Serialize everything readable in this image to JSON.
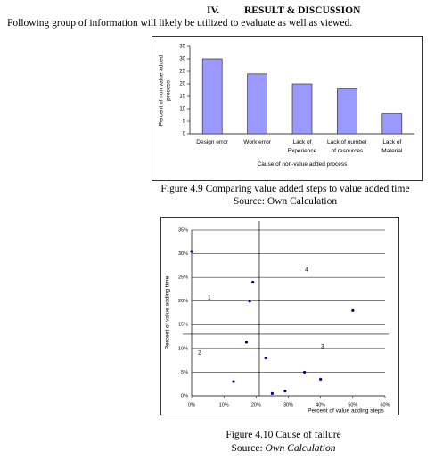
{
  "heading": {
    "number": "IV.",
    "title": "RESULT & DISCUSSION"
  },
  "intro": "Following group of information will likely be utilized to evaluate as well as viewed.",
  "figure_1": {
    "caption": "Figure 4.9 Comparing value added steps to value added time",
    "source": "Source: Own Calculation"
  },
  "figure_2": {
    "caption": "Figure  4.10 Cause of failure",
    "source_prefix": "Source:",
    "source_text": "Own Calculation"
  },
  "chart_data": [
    {
      "type": "bar",
      "categories": [
        "Design error",
        "Work error",
        "Lack of\nExperience",
        "Lack of number\nof resources",
        "Lack of\nMaterial"
      ],
      "values": [
        30,
        24,
        20,
        18,
        8
      ],
      "color": "#9999ff",
      "xlabel": "Cause of non-value added process",
      "ylabel": "Percent of non value added\nprocess",
      "ylim": [
        0,
        35
      ],
      "yticks": [
        0,
        5,
        10,
        15,
        20,
        25,
        30,
        35
      ],
      "grid": false
    },
    {
      "type": "scatter",
      "x": [
        0,
        19,
        18,
        50,
        17,
        23,
        13,
        35,
        40,
        29,
        25
      ],
      "values": [
        30.5,
        24,
        20,
        18,
        11.3,
        8,
        3,
        5,
        3.5,
        1,
        0.5
      ],
      "color": "#000080",
      "xlabel": "Percent of value adding steps",
      "ylabel": "Percent of value adding time",
      "xlim": [
        0,
        60
      ],
      "ylim": [
        0,
        35
      ],
      "xticks": [
        {
          "value": 0,
          "label": "0%"
        },
        {
          "value": 10,
          "label": "10%"
        },
        {
          "value": 20,
          "label": "20%"
        },
        {
          "value": 30,
          "label": "30%"
        },
        {
          "value": 40,
          "label": "40%"
        },
        {
          "value": 50,
          "label": "50%"
        },
        {
          "value": 60,
          "label": "60%"
        }
      ],
      "yticks": [
        {
          "value": 0,
          "label": "0%"
        },
        {
          "value": 5,
          "label": "5%"
        },
        {
          "value": 10,
          "label": "10%"
        },
        {
          "value": 15,
          "label": "15%"
        },
        {
          "value": 20,
          "label": "20%"
        },
        {
          "value": 25,
          "label": "25%"
        },
        {
          "value": 30,
          "label": "30%"
        },
        {
          "value": 35,
          "label": "35%"
        }
      ],
      "grid": true,
      "dividers": {
        "x": 21,
        "y": 13
      },
      "quadrant_labels": [
        "1",
        "2",
        "3",
        "4"
      ]
    }
  ]
}
